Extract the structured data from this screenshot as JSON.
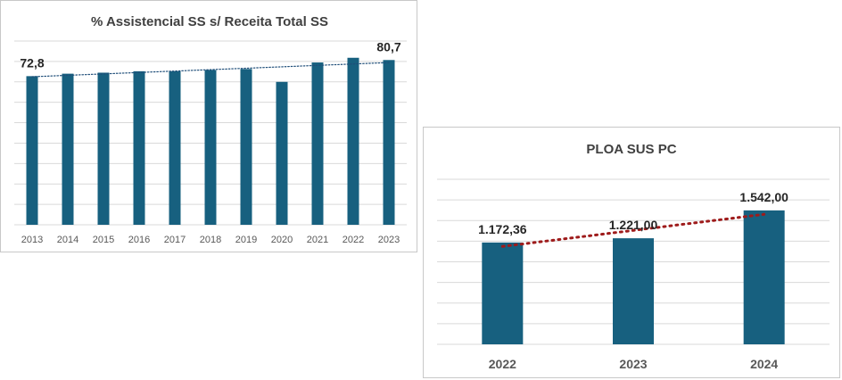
{
  "chart_data": [
    {
      "type": "bar",
      "title": "% Assistencial SS s/ Receita Total SS",
      "categories": [
        "2013",
        "2014",
        "2015",
        "2016",
        "2017",
        "2018",
        "2019",
        "2020",
        "2021",
        "2022",
        "2023"
      ],
      "values": [
        72.8,
        74.0,
        74.5,
        75.2,
        75.2,
        75.8,
        76.3,
        70.0,
        79.5,
        81.8,
        80.7
      ],
      "data_labels": [
        {
          "index": 0,
          "text": "72,8"
        },
        {
          "index": 10,
          "text": "80,7"
        }
      ],
      "ylim": [
        0,
        90
      ],
      "grid": true,
      "trendline": {
        "style": "dotted",
        "color": "#1f4e79"
      },
      "bar_color": "#17607f"
    },
    {
      "type": "bar",
      "title": "PLOA SUS PC",
      "categories": [
        "2022",
        "2023",
        "2024"
      ],
      "values": [
        1172.36,
        1221.0,
        1542.0
      ],
      "data_labels": [
        {
          "index": 0,
          "text": "1.172,36"
        },
        {
          "index": 1,
          "text": "1.221,00"
        },
        {
          "index": 2,
          "text": "1.542,00"
        }
      ],
      "ylim": [
        0,
        1900
      ],
      "grid": true,
      "trendline": {
        "style": "dotted",
        "color": "#9e1b1b"
      },
      "bar_color": "#17607f"
    }
  ]
}
